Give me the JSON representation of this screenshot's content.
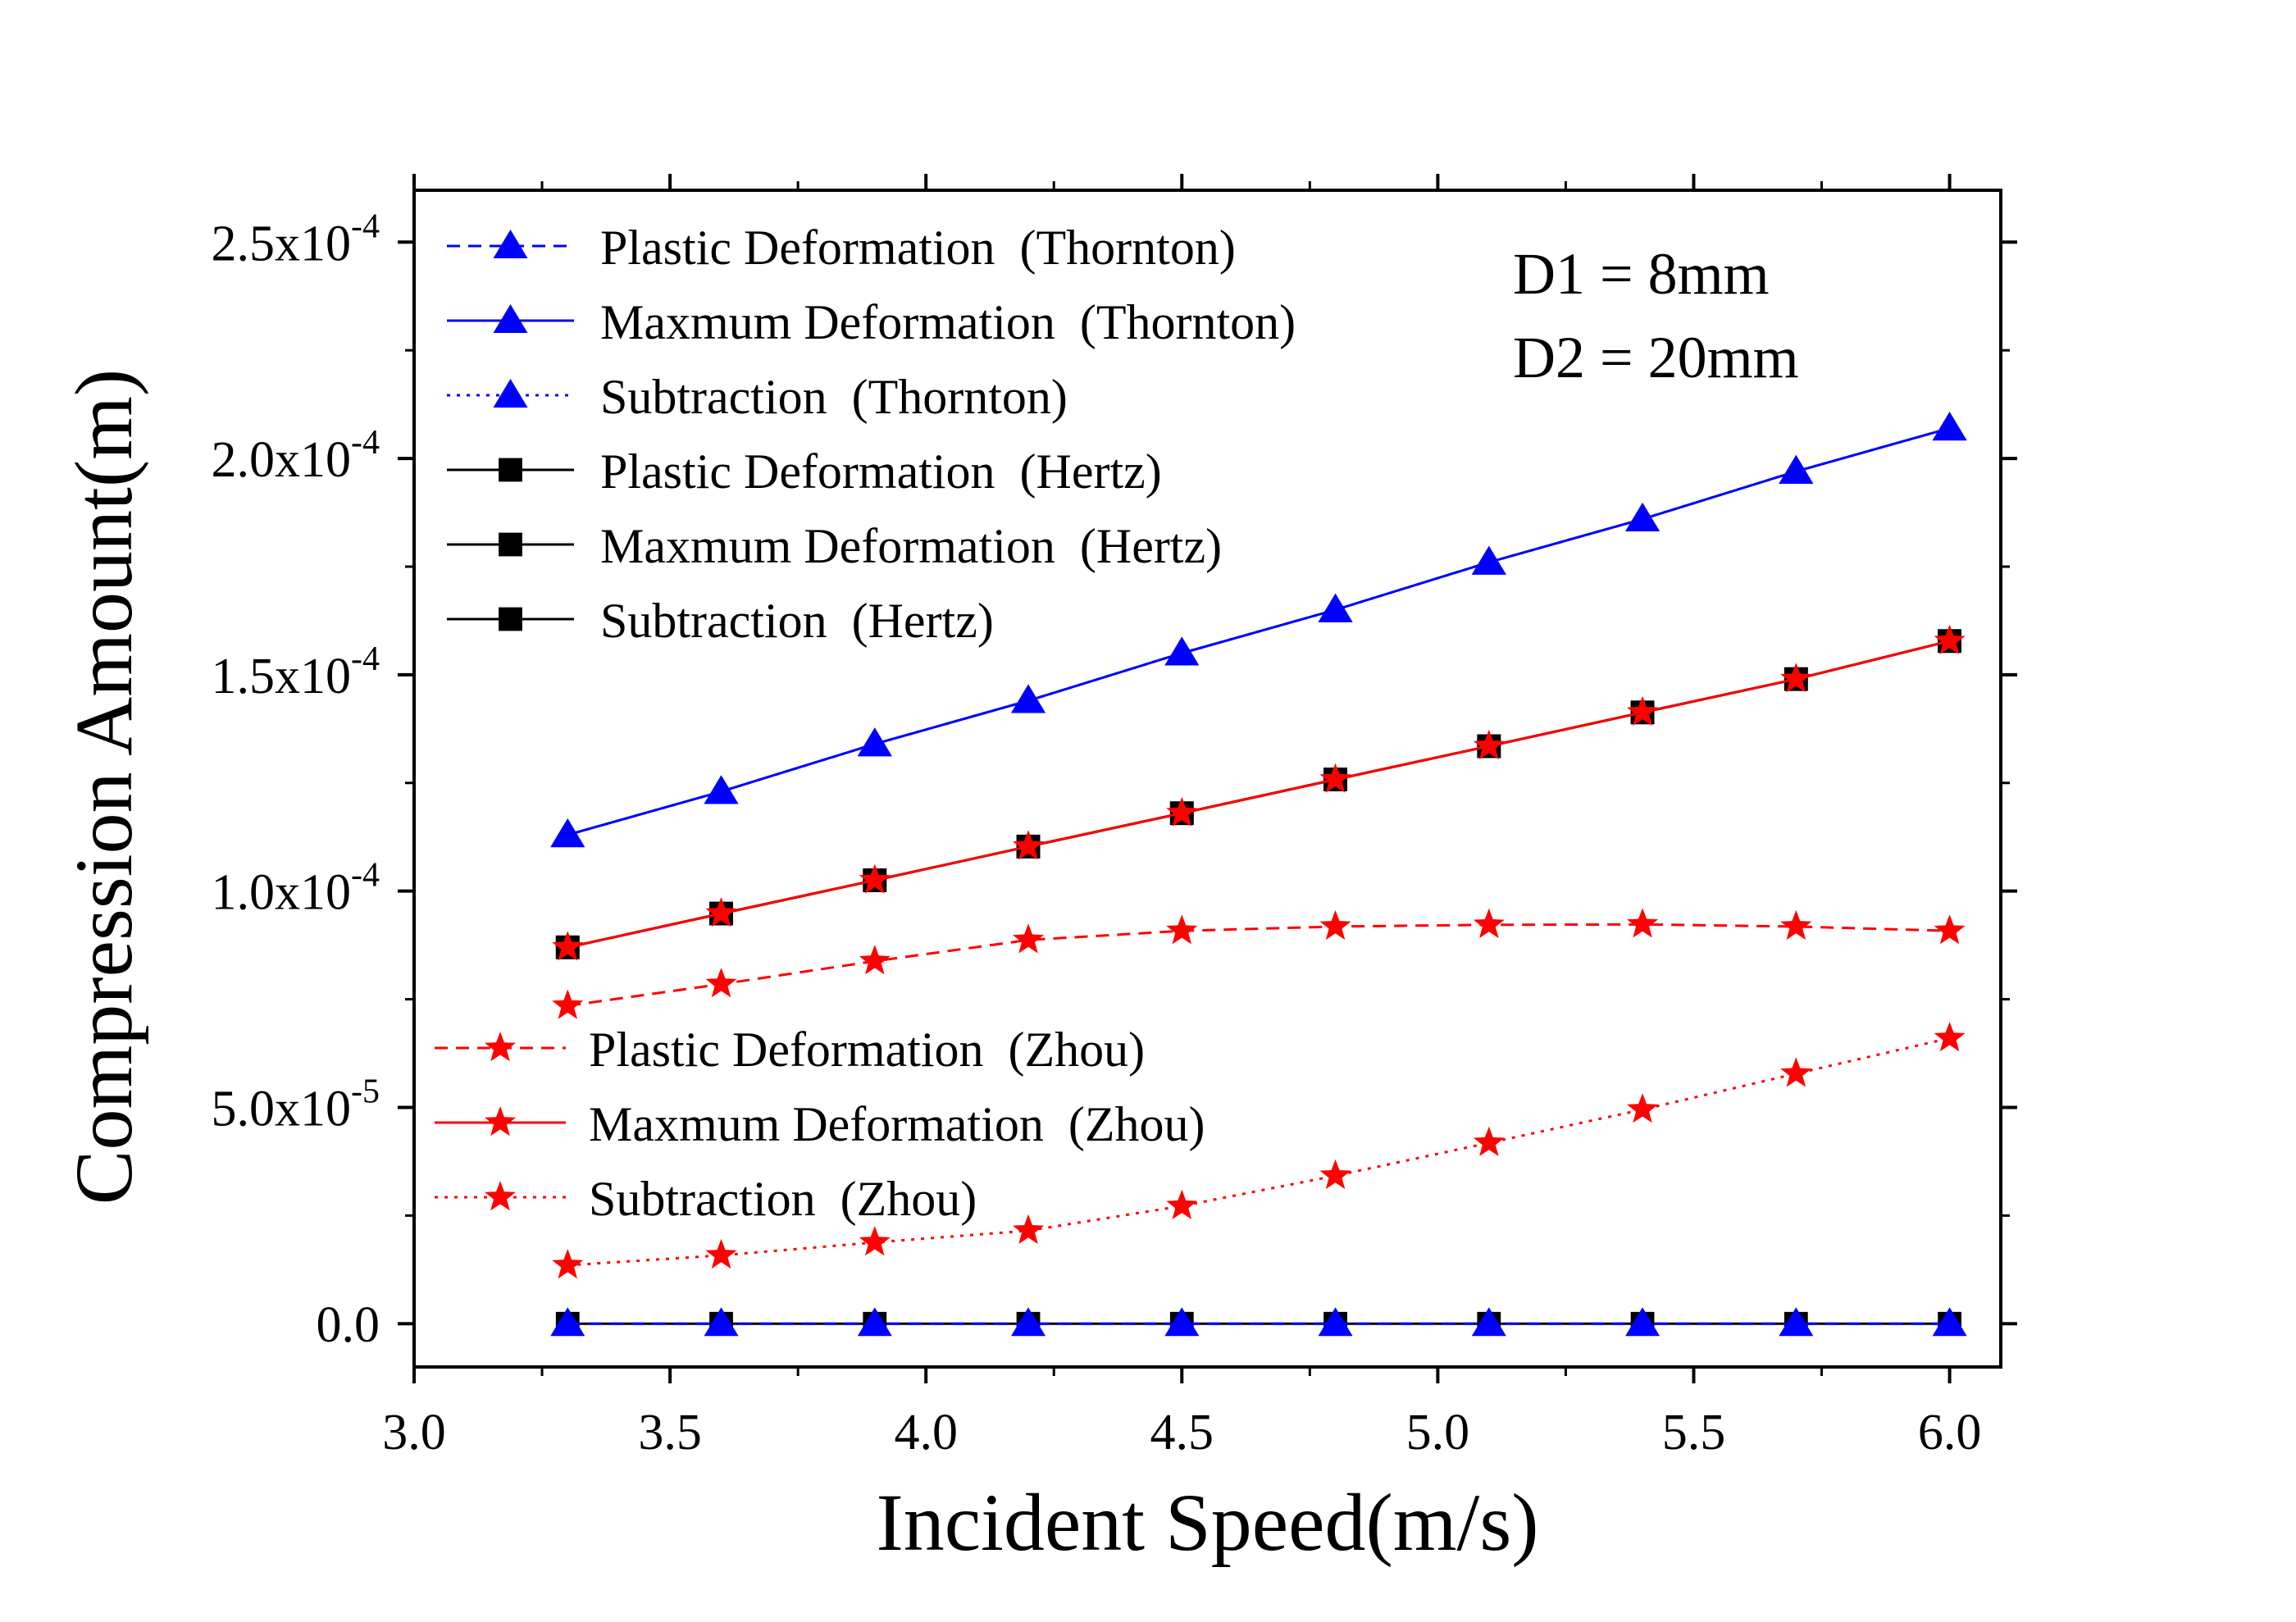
{
  "chart_data": {
    "type": "line",
    "xlabel": "Incident Speed(m/s)",
    "ylabel": "Compression Amount(m)",
    "xlim": [
      3.0,
      6.1
    ],
    "ylim": [
      -1e-05,
      0.000262
    ],
    "x_ticks": [
      3.0,
      3.5,
      4.0,
      4.5,
      5.0,
      5.5,
      6.0
    ],
    "x_tick_labels": [
      "3.0",
      "3.5",
      "4.0",
      "4.5",
      "5.0",
      "5.5",
      "6.0"
    ],
    "y_ticks": [
      0,
      5e-05,
      0.0001,
      0.00015,
      0.0002,
      0.00025
    ],
    "y_tick_labels": [
      {
        "mantissa": "0.0",
        "exp": ""
      },
      {
        "mantissa": "5.0x10",
        "exp": "-5"
      },
      {
        "mantissa": "1.0x10",
        "exp": "-4"
      },
      {
        "mantissa": "1.5x10",
        "exp": "-4"
      },
      {
        "mantissa": "2.0x10",
        "exp": "-4"
      },
      {
        "mantissa": "2.5x10",
        "exp": "-4"
      }
    ],
    "annotations": [
      "D1 = 8mm",
      "D2 = 20mm"
    ],
    "x": [
      3.3,
      3.6,
      3.9,
      4.2,
      4.5,
      4.8,
      5.1,
      5.4,
      5.7,
      6.0
    ],
    "series": [
      {
        "name": "Plastic Deformation  (Thornton)",
        "color": "#0000ff",
        "marker": "triangle",
        "dash": "dashed",
        "values": [
          0,
          0,
          0,
          0,
          0,
          0,
          0,
          0,
          0,
          0
        ]
      },
      {
        "name": "Maxmum Deformation  (Thornton)",
        "color": "#0000ff",
        "marker": "triangle",
        "dash": "solid",
        "values": [
          0.000113,
          0.000123,
          0.000134,
          0.000144,
          0.000155,
          0.000165,
          0.000176,
          0.000186,
          0.000197,
          0.000207
        ]
      },
      {
        "name": "Subtraction  (Thornton)",
        "color": "#0000ff",
        "marker": "triangle",
        "dash": "dotted",
        "values": [
          0.000113,
          0.000123,
          0.000134,
          0.000144,
          0.000155,
          0.000165,
          0.000176,
          0.000186,
          0.000197,
          0.000207
        ]
      },
      {
        "name": "Plastic Deformation  (Hertz)",
        "color": "#000000",
        "marker": "square",
        "dash": "solid",
        "values": [
          0,
          0,
          0,
          0,
          0,
          0,
          0,
          0,
          0,
          0
        ]
      },
      {
        "name": "Maxmum Deformation  (Hertz)",
        "color": "#000000",
        "marker": "square",
        "dash": "solid",
        "values": [
          8.7e-05,
          9.48e-05,
          0.0001025,
          0.0001103,
          0.000118,
          0.0001258,
          0.0001335,
          0.0001413,
          0.000149,
          0.0001578
        ]
      },
      {
        "name": "Subtraction  (Hertz)",
        "color": "#000000",
        "marker": "square",
        "dash": "solid",
        "values": [
          8.7e-05,
          9.48e-05,
          0.0001025,
          0.0001103,
          0.000118,
          0.0001258,
          0.0001335,
          0.0001413,
          0.000149,
          0.0001578
        ]
      },
      {
        "name": "Plastic Deformation  (Zhou)",
        "color": "#ff0000",
        "marker": "star",
        "dash": "dashed",
        "values": [
          7.35e-05,
          7.85e-05,
          8.38e-05,
          8.87e-05,
          9.08e-05,
          9.18e-05,
          9.22e-05,
          9.23e-05,
          9.18e-05,
          9.08e-05
        ]
      },
      {
        "name": "Maxmum Deformation  (Zhou)",
        "color": "#ff0000",
        "marker": "star",
        "dash": "solid",
        "values": [
          8.7e-05,
          9.48e-05,
          0.0001025,
          0.0001103,
          0.000118,
          0.0001258,
          0.0001335,
          0.0001413,
          0.000149,
          0.0001578
        ]
      },
      {
        "name": "Subtraction  (Zhou)",
        "color": "#ff0000",
        "marker": "star",
        "dash": "dotted",
        "values": [
          1.35e-05,
          1.58e-05,
          1.88e-05,
          2.15e-05,
          2.72e-05,
          3.42e-05,
          4.18e-05,
          4.95e-05,
          5.78e-05,
          6.6e-05
        ]
      }
    ],
    "legend_groups": [
      {
        "location": "top-left",
        "series": [
          0,
          1,
          2,
          3,
          4,
          5
        ]
      },
      {
        "location": "lower-left",
        "series": [
          6,
          7,
          8
        ]
      }
    ],
    "grid": false
  }
}
